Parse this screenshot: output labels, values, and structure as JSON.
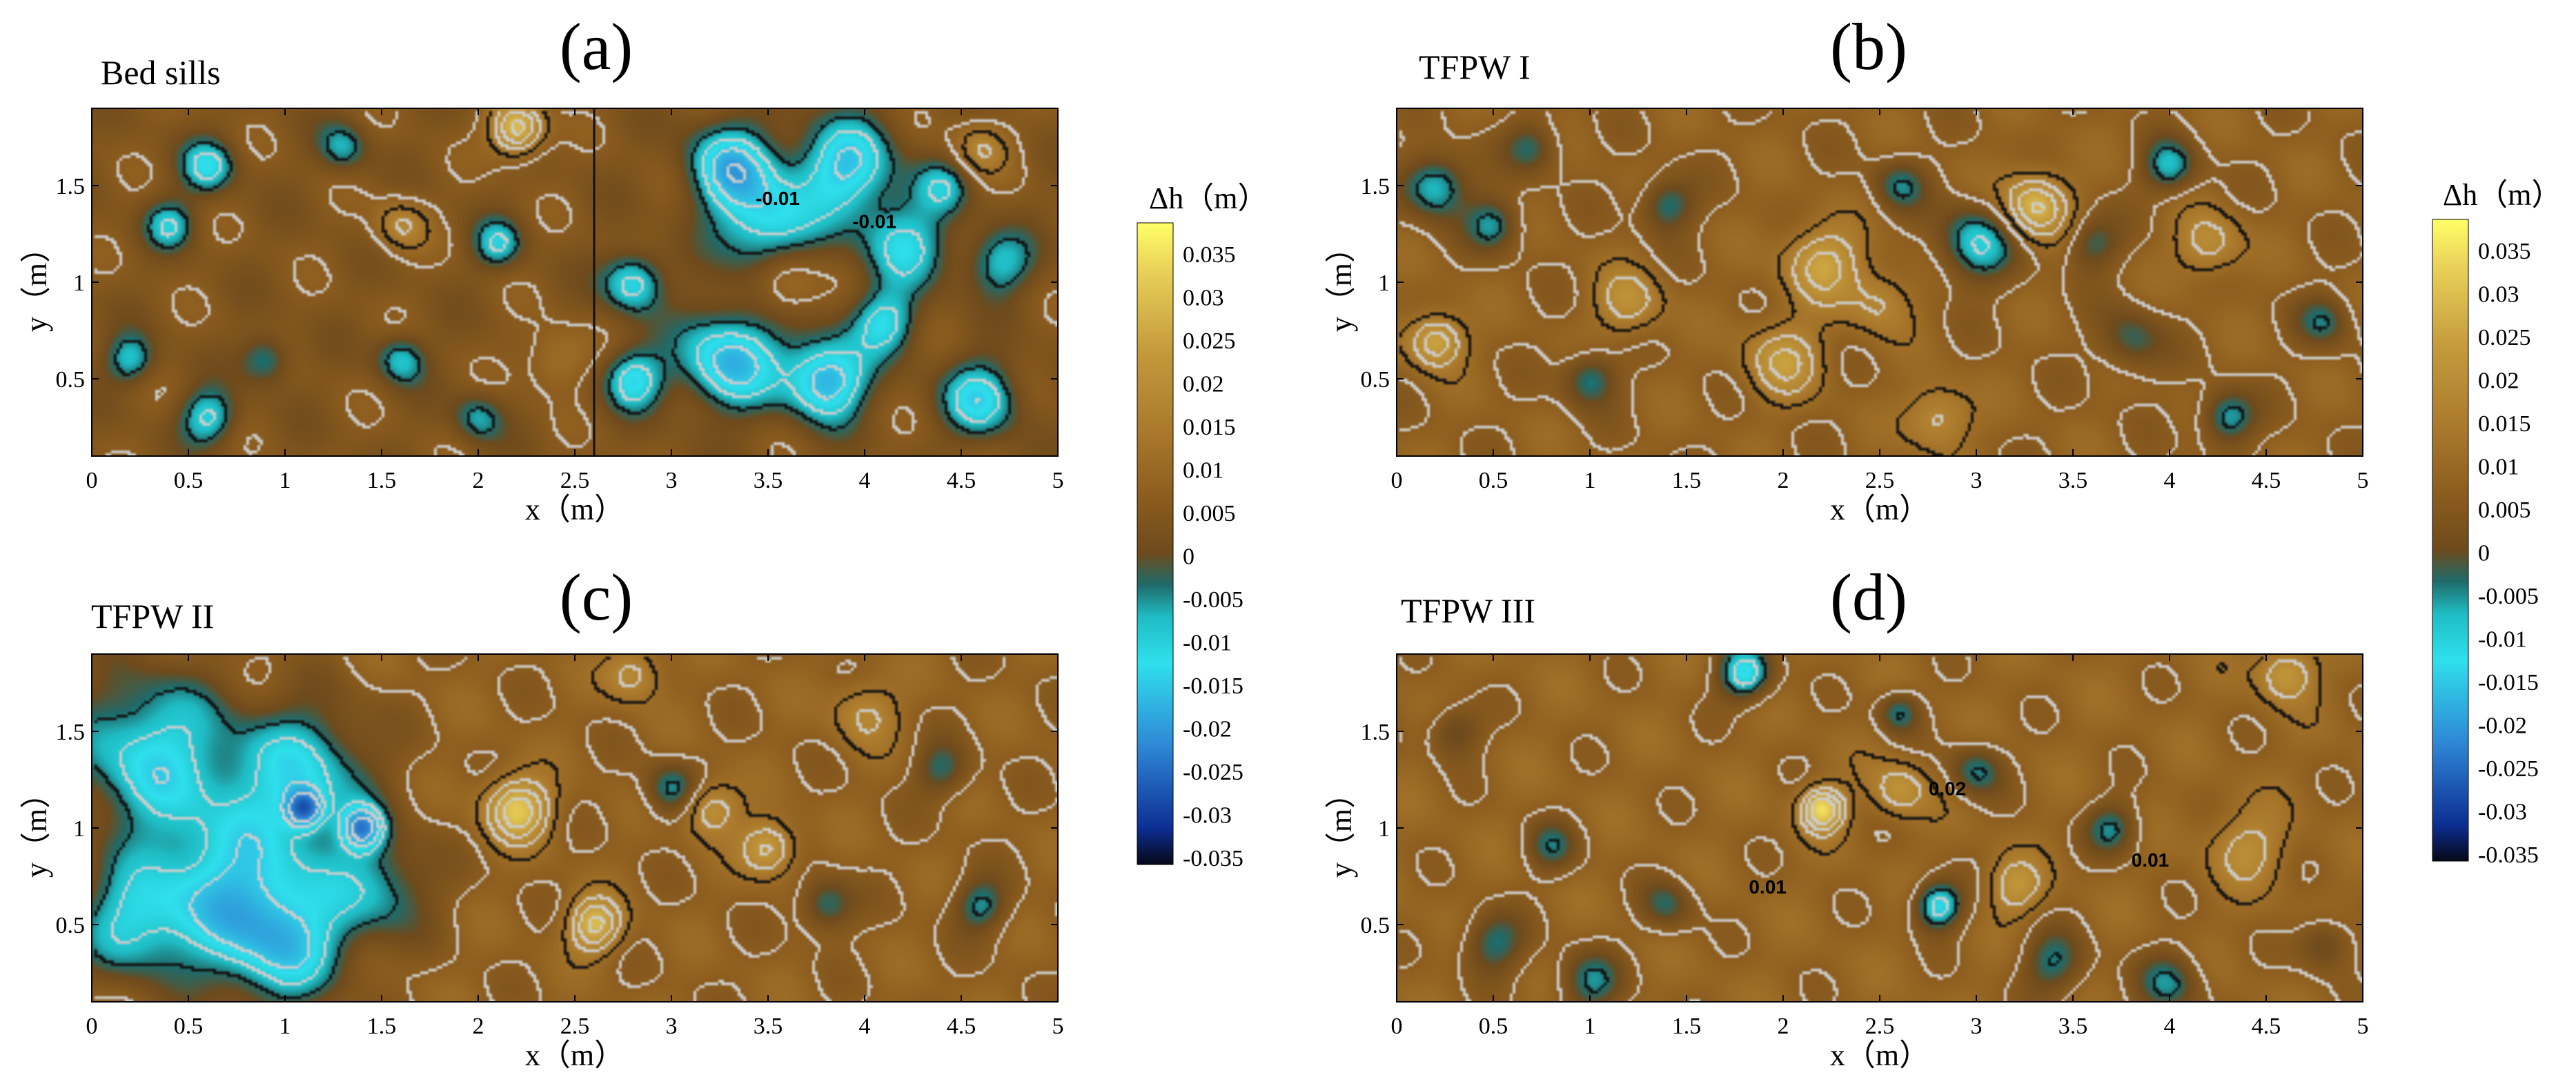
{
  "chart_data": {
    "type": "heatmap",
    "colorbar": {
      "title": "Δh（m）",
      "ticks": [
        "0.035",
        "0.03",
        "0.025",
        "0.02",
        "0.015",
        "0.01",
        "0.005",
        "0",
        "-0.005",
        "-0.01",
        "-0.015",
        "-0.02",
        "-0.025",
        "-0.03",
        "-0.035"
      ],
      "range": [
        -0.035,
        0.035
      ],
      "colors": [
        {
          "v": -0.035,
          "c": "#050818"
        },
        {
          "v": -0.031,
          "c": "#0d2f94"
        },
        {
          "v": -0.022,
          "c": "#2f88d6"
        },
        {
          "v": -0.013,
          "c": "#2fe0ec"
        },
        {
          "v": -0.008,
          "c": "#1fbcc4"
        },
        {
          "v": -0.0045,
          "c": "#1f6b6a"
        },
        {
          "v": -0.001,
          "c": "#6e4a1c"
        },
        {
          "v": 0.005,
          "c": "#8b5c1e"
        },
        {
          "v": 0.012,
          "c": "#a9782c"
        },
        {
          "v": 0.021,
          "c": "#c49a3c"
        },
        {
          "v": 0.03,
          "c": "#ead25a"
        },
        {
          "v": 0.035,
          "c": "#ffff66"
        }
      ]
    },
    "panels": [
      {
        "id": "a",
        "letter": "(a)",
        "title": "Bed sills",
        "xlabel": "x（m）",
        "ylabel": "y（m）",
        "xlim": [
          0,
          5
        ],
        "ylim": [
          0.1,
          1.9
        ],
        "xticks": [
          "0",
          "0.5",
          "1",
          "1.5",
          "2",
          "2.5",
          "3",
          "3.5",
          "4",
          "4.5",
          "5"
        ],
        "yticks": [
          "0.5",
          "1",
          "1.5"
        ],
        "base": 0.003,
        "features": [
          {
            "x": 0.6,
            "y": 1.6,
            "a": -0.014,
            "r": 0.1
          },
          {
            "x": 0.4,
            "y": 1.3,
            "a": -0.012,
            "r": 0.09
          },
          {
            "x": 0.2,
            "y": 0.6,
            "a": -0.012,
            "r": 0.09
          },
          {
            "x": 0.6,
            "y": 0.3,
            "a": -0.014,
            "r": 0.1
          },
          {
            "x": 0.9,
            "y": 0.6,
            "a": -0.01,
            "r": 0.09
          },
          {
            "x": 1.3,
            "y": 1.7,
            "a": -0.01,
            "r": 0.09
          },
          {
            "x": 1.6,
            "y": 0.6,
            "a": -0.012,
            "r": 0.09
          },
          {
            "x": 1.6,
            "y": 1.3,
            "a": 0.012,
            "r": 0.1
          },
          {
            "x": 2.1,
            "y": 1.2,
            "a": -0.012,
            "r": 0.09
          },
          {
            "x": 2.2,
            "y": 1.8,
            "a": 0.025,
            "r": 0.1
          },
          {
            "x": 2.0,
            "y": 0.3,
            "a": -0.01,
            "r": 0.09
          },
          {
            "x": 2.4,
            "y": 0.6,
            "a": 0.008,
            "r": 0.12
          },
          {
            "x": 2.8,
            "y": 1.0,
            "a": -0.016,
            "r": 0.11
          },
          {
            "x": 2.8,
            "y": 0.5,
            "a": -0.016,
            "r": 0.11
          },
          {
            "x": 3.3,
            "y": 1.6,
            "a": -0.018,
            "r": 0.16
          },
          {
            "x": 3.5,
            "y": 1.3,
            "a": -0.016,
            "r": 0.18
          },
          {
            "x": 3.9,
            "y": 1.6,
            "a": -0.018,
            "r": 0.18
          },
          {
            "x": 4.2,
            "y": 1.2,
            "a": -0.014,
            "r": 0.16
          },
          {
            "x": 3.3,
            "y": 0.6,
            "a": -0.02,
            "r": 0.18
          },
          {
            "x": 3.8,
            "y": 0.5,
            "a": -0.022,
            "r": 0.15
          },
          {
            "x": 4.1,
            "y": 0.8,
            "a": -0.014,
            "r": 0.12
          },
          {
            "x": 4.6,
            "y": 0.4,
            "a": -0.016,
            "r": 0.14
          },
          {
            "x": 4.7,
            "y": 1.1,
            "a": -0.012,
            "r": 0.12
          },
          {
            "x": 4.6,
            "y": 1.7,
            "a": 0.012,
            "r": 0.1
          },
          {
            "x": 3.6,
            "y": 1.0,
            "a": 0.01,
            "r": 0.12
          },
          {
            "x": 4.4,
            "y": 1.5,
            "a": -0.01,
            "r": 0.1
          }
        ],
        "contour_labels": [
          {
            "text": "-0.01",
            "x": 3.55,
            "y": 1.4
          },
          {
            "text": "-0.01",
            "x": 4.05,
            "y": 1.28
          }
        ]
      },
      {
        "id": "b",
        "letter": "(b)",
        "title": "TFPW I",
        "xlabel": "x（m）",
        "ylabel": "y（m）",
        "xlim": [
          0,
          5
        ],
        "ylim": [
          0.1,
          1.9
        ],
        "xticks": [
          "0",
          "0.5",
          "1",
          "1.5",
          "2",
          "2.5",
          "3",
          "3.5",
          "4",
          "4.5",
          "5"
        ],
        "yticks": [
          "0.5",
          "1",
          "1.5"
        ],
        "base": 0.006,
        "features": [
          {
            "x": 0.2,
            "y": 1.5,
            "a": -0.016,
            "r": 0.12
          },
          {
            "x": 0.5,
            "y": 1.3,
            "a": -0.012,
            "r": 0.1
          },
          {
            "x": 0.2,
            "y": 0.7,
            "a": 0.018,
            "r": 0.1
          },
          {
            "x": 1.0,
            "y": 0.5,
            "a": -0.012,
            "r": 0.1
          },
          {
            "x": 1.4,
            "y": 1.4,
            "a": -0.012,
            "r": 0.1
          },
          {
            "x": 2.2,
            "y": 1.1,
            "a": 0.016,
            "r": 0.14
          },
          {
            "x": 2.0,
            "y": 0.6,
            "a": 0.014,
            "r": 0.14
          },
          {
            "x": 2.6,
            "y": 1.5,
            "a": -0.01,
            "r": 0.1
          },
          {
            "x": 3.0,
            "y": 1.2,
            "a": -0.016,
            "r": 0.14
          },
          {
            "x": 2.8,
            "y": 0.3,
            "a": 0.012,
            "r": 0.12
          },
          {
            "x": 3.3,
            "y": 1.4,
            "a": 0.02,
            "r": 0.12
          },
          {
            "x": 3.6,
            "y": 1.2,
            "a": -0.01,
            "r": 0.1
          },
          {
            "x": 4.0,
            "y": 1.6,
            "a": -0.014,
            "r": 0.1
          },
          {
            "x": 4.3,
            "y": 0.3,
            "a": -0.014,
            "r": 0.1
          },
          {
            "x": 4.2,
            "y": 1.2,
            "a": 0.012,
            "r": 0.12
          },
          {
            "x": 4.8,
            "y": 0.8,
            "a": -0.01,
            "r": 0.1
          },
          {
            "x": 1.2,
            "y": 0.9,
            "a": 0.012,
            "r": 0.12
          },
          {
            "x": 0.7,
            "y": 1.7,
            "a": -0.01,
            "r": 0.1
          },
          {
            "x": 3.8,
            "y": 0.7,
            "a": -0.01,
            "r": 0.12
          },
          {
            "x": 2.5,
            "y": 0.9,
            "a": 0.01,
            "r": 0.12
          }
        ],
        "contour_labels": []
      },
      {
        "id": "c",
        "letter": "(c)",
        "title": "TFPW II",
        "xlabel": "x（m）",
        "ylabel": "y（m）",
        "xlim": [
          0,
          5
        ],
        "ylim": [
          0.1,
          1.9
        ],
        "xticks": [
          "0",
          "0.5",
          "1",
          "1.5",
          "2",
          "2.5",
          "3",
          "3.5",
          "4",
          "4.5",
          "5"
        ],
        "yticks": [
          "0.5",
          "1",
          "1.5"
        ],
        "base": 0.006,
        "features": [
          {
            "x": 0.3,
            "y": 1.4,
            "a": -0.018,
            "r": 0.3
          },
          {
            "x": 0.7,
            "y": 0.7,
            "a": -0.018,
            "r": 0.32
          },
          {
            "x": 1.1,
            "y": 1.3,
            "a": -0.016,
            "r": 0.26
          },
          {
            "x": 1.0,
            "y": 0.4,
            "a": -0.016,
            "r": 0.24
          },
          {
            "x": 1.5,
            "y": 0.7,
            "a": -0.012,
            "r": 0.2
          },
          {
            "x": 0.2,
            "y": 0.5,
            "a": -0.014,
            "r": 0.2
          },
          {
            "x": 1.4,
            "y": 1.0,
            "a": -0.02,
            "r": 0.08
          },
          {
            "x": 1.1,
            "y": 1.1,
            "a": -0.02,
            "r": 0.07
          },
          {
            "x": 2.2,
            "y": 1.1,
            "a": 0.022,
            "r": 0.12
          },
          {
            "x": 2.6,
            "y": 0.5,
            "a": 0.02,
            "r": 0.1
          },
          {
            "x": 3.0,
            "y": 1.2,
            "a": -0.012,
            "r": 0.1
          },
          {
            "x": 3.2,
            "y": 1.1,
            "a": 0.014,
            "r": 0.1
          },
          {
            "x": 3.5,
            "y": 0.9,
            "a": 0.016,
            "r": 0.1
          },
          {
            "x": 3.8,
            "y": 0.6,
            "a": -0.012,
            "r": 0.1
          },
          {
            "x": 4.6,
            "y": 0.6,
            "a": -0.012,
            "r": 0.1
          },
          {
            "x": 4.4,
            "y": 1.3,
            "a": -0.01,
            "r": 0.1
          },
          {
            "x": 2.8,
            "y": 1.8,
            "a": 0.012,
            "r": 0.1
          },
          {
            "x": 4.0,
            "y": 1.6,
            "a": 0.01,
            "r": 0.12
          }
        ],
        "contour_labels": []
      },
      {
        "id": "d",
        "letter": "(d)",
        "title": "TFPW III",
        "xlabel": "x（m）",
        "ylabel": "y（m）",
        "xlim": [
          0,
          5
        ],
        "ylim": [
          0.1,
          1.9
        ],
        "xticks": [
          "0",
          "0.5",
          "1",
          "1.5",
          "2",
          "2.5",
          "3",
          "3.5",
          "4",
          "4.5",
          "5"
        ],
        "yticks": [
          "0.5",
          "1",
          "1.5"
        ],
        "base": 0.007,
        "features": [
          {
            "x": 0.3,
            "y": 1.5,
            "a": -0.01,
            "r": 0.1
          },
          {
            "x": 0.5,
            "y": 0.4,
            "a": -0.012,
            "r": 0.12
          },
          {
            "x": 0.8,
            "y": 0.9,
            "a": -0.01,
            "r": 0.1
          },
          {
            "x": 1.0,
            "y": 0.2,
            "a": -0.012,
            "r": 0.12
          },
          {
            "x": 1.8,
            "y": 1.8,
            "a": -0.02,
            "r": 0.1
          },
          {
            "x": 2.2,
            "y": 1.1,
            "a": 0.024,
            "r": 0.08
          },
          {
            "x": 2.6,
            "y": 1.6,
            "a": -0.012,
            "r": 0.08
          },
          {
            "x": 2.8,
            "y": 0.6,
            "a": -0.02,
            "r": 0.09
          },
          {
            "x": 3.0,
            "y": 1.3,
            "a": -0.012,
            "r": 0.1
          },
          {
            "x": 3.2,
            "y": 0.7,
            "a": 0.012,
            "r": 0.1
          },
          {
            "x": 3.4,
            "y": 0.3,
            "a": -0.012,
            "r": 0.12
          },
          {
            "x": 3.7,
            "y": 1.0,
            "a": -0.012,
            "r": 0.1
          },
          {
            "x": 4.0,
            "y": 0.2,
            "a": -0.012,
            "r": 0.12
          },
          {
            "x": 4.6,
            "y": 1.8,
            "a": 0.014,
            "r": 0.1
          },
          {
            "x": 4.4,
            "y": 0.9,
            "a": 0.01,
            "r": 0.14
          },
          {
            "x": 2.6,
            "y": 1.2,
            "a": 0.012,
            "r": 0.1
          },
          {
            "x": 1.4,
            "y": 0.6,
            "a": -0.01,
            "r": 0.1
          },
          {
            "x": 4.8,
            "y": 0.4,
            "a": -0.01,
            "r": 0.1
          }
        ],
        "contour_labels": [
          {
            "text": "0.01",
            "x": 1.92,
            "y": 0.66
          },
          {
            "text": "0.01",
            "x": 3.9,
            "y": 0.8
          },
          {
            "text": "0.02",
            "x": 2.85,
            "y": 1.17
          }
        ]
      }
    ]
  }
}
